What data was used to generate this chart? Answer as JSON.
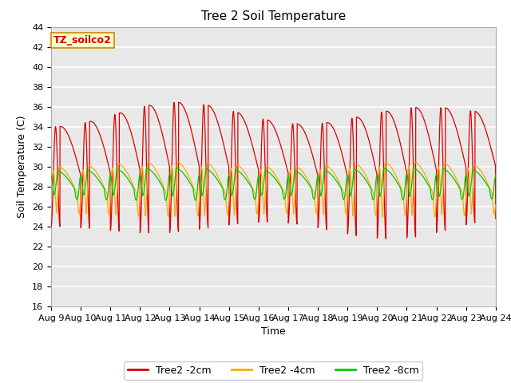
{
  "title": "Tree 2 Soil Temperature",
  "xlabel": "Time",
  "ylabel": "Soil Temperature (C)",
  "ylim": [
    16,
    44
  ],
  "xtick_labels": [
    "Aug 9",
    "Aug 10",
    "Aug 11",
    "Aug 12",
    "Aug 13",
    "Aug 14",
    "Aug 15",
    "Aug 16",
    "Aug 17",
    "Aug 18",
    "Aug 19",
    "Aug 20",
    "Aug 21",
    "Aug 22",
    "Aug 23",
    "Aug 24"
  ],
  "ytick_values": [
    16,
    18,
    20,
    22,
    24,
    26,
    28,
    30,
    32,
    34,
    36,
    38,
    40,
    42,
    44
  ],
  "legend_entries": [
    "Tree2 -2cm",
    "Tree2 -4cm",
    "Tree2 -8cm"
  ],
  "line_colors": [
    "#dd0000",
    "#ffaa00",
    "#00cc00"
  ],
  "annotation_text": "TZ_soilco2",
  "annotation_box_color": "#ffffcc",
  "annotation_box_edge": "#cc8800",
  "bg_color": "#e8e8e8",
  "grid_color": "#ffffff",
  "title_fontsize": 11,
  "axis_label_fontsize": 9,
  "tick_fontsize": 8,
  "legend_fontsize": 9
}
